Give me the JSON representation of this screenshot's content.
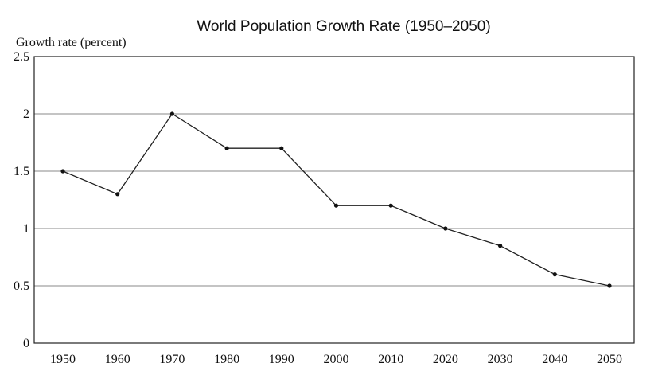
{
  "chart_data": {
    "type": "line",
    "title": "World Population Growth Rate (1950–2050)",
    "ylabel": "Growth rate (percent)",
    "xlabel": "",
    "x": [
      1950,
      1960,
      1970,
      1980,
      1990,
      2000,
      2010,
      2020,
      2030,
      2040,
      2050
    ],
    "x_tick_labels": [
      "1950",
      "1960",
      "1970",
      "1980",
      "1990",
      "2000",
      "2010",
      "2020",
      "2030",
      "2040",
      "2050"
    ],
    "y_ticks": [
      0,
      0.5,
      1,
      1.5,
      2,
      2.5
    ],
    "y_tick_labels": [
      "0",
      "0.5",
      "1",
      "1.5",
      "2",
      "2.5"
    ],
    "ylim": [
      0,
      2.5
    ],
    "grid": true,
    "legend": "none",
    "series": [
      {
        "values": [
          1.5,
          1.3,
          2.0,
          1.7,
          1.7,
          1.2,
          1.2,
          1.0,
          0.85,
          0.6,
          0.5
        ]
      }
    ]
  }
}
